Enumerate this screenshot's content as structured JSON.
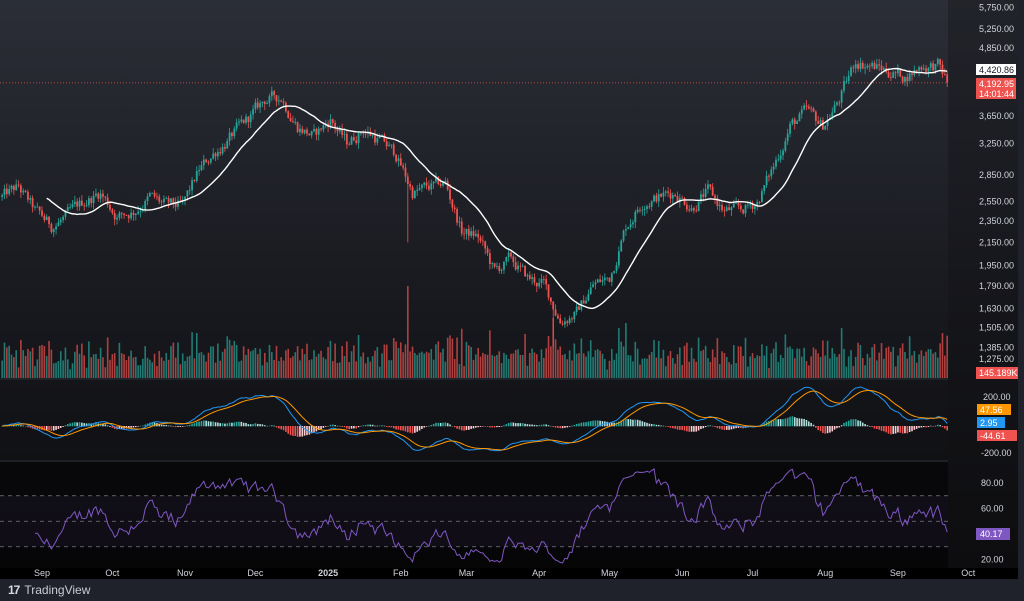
{
  "brand": {
    "name": "TradingView",
    "logo_icon": "tradingview-logo-icon"
  },
  "colors": {
    "up": "#26a69a",
    "down": "#ef5350",
    "ma": "#ffffff",
    "macd": "#2196f3",
    "signal": "#ff9800",
    "rsi": "#7e57c2"
  },
  "chart_data": [
    {
      "type": "candlestick",
      "scale": "log",
      "y_ticks": [
        "5,750.00",
        "5,250.00",
        "4,850.00",
        "3,650.00",
        "3,250.00",
        "2,850.00",
        "2,550.00",
        "2,350.00",
        "2,150.00",
        "1,950.00",
        "1,790.00",
        "1,630.00",
        "1,505.00",
        "1,385.00",
        "1,275.00"
      ],
      "y_tick_values": [
        5750,
        5250,
        4850,
        3650,
        3250,
        2850,
        2550,
        2350,
        2150,
        1950,
        1790,
        1630,
        1505,
        1385,
        1275
      ],
      "x_ticks": [
        "Sep",
        "Oct",
        "Nov",
        "Dec",
        "2025",
        "Feb",
        "Mar",
        "Apr",
        "May",
        "Jun",
        "Jul",
        "Aug",
        "Sep",
        "Oct"
      ],
      "x_tick_dates": [
        "2024-09-01",
        "2024-10-01",
        "2024-11-01",
        "2024-12-01",
        "2025-01-01",
        "2025-02-01",
        "2025-03-01",
        "2025-04-01",
        "2025-05-01",
        "2025-06-01",
        "2025-07-01",
        "2025-08-01",
        "2025-09-01",
        "2025-10-01"
      ],
      "approx_weekly_close": [
        [
          "2024-08-15",
          2600
        ],
        [
          "2024-08-22",
          2700
        ],
        [
          "2024-08-29",
          2450
        ],
        [
          "2024-09-05",
          2300
        ],
        [
          "2024-09-12",
          2400
        ],
        [
          "2024-09-19",
          2550
        ],
        [
          "2024-09-26",
          2650
        ],
        [
          "2024-10-03",
          2400
        ],
        [
          "2024-10-10",
          2450
        ],
        [
          "2024-10-17",
          2600
        ],
        [
          "2024-10-24",
          2500
        ],
        [
          "2024-10-31",
          2500
        ],
        [
          "2024-11-07",
          2900
        ],
        [
          "2024-11-14",
          3150
        ],
        [
          "2024-11-21",
          3350
        ],
        [
          "2024-11-28",
          3600
        ],
        [
          "2024-12-05",
          3900
        ],
        [
          "2024-12-12",
          3950
        ],
        [
          "2024-12-19",
          3500
        ],
        [
          "2024-12-26",
          3350
        ],
        [
          "2025-01-02",
          3600
        ],
        [
          "2025-01-09",
          3250
        ],
        [
          "2025-01-16",
          3450
        ],
        [
          "2025-01-23",
          3300
        ],
        [
          "2025-01-30",
          3100
        ],
        [
          "2025-02-06",
          2650
        ],
        [
          "2025-02-13",
          2700
        ],
        [
          "2025-02-20",
          2750
        ],
        [
          "2025-02-27",
          2250
        ],
        [
          "2025-03-06",
          2200
        ],
        [
          "2025-03-13",
          1900
        ],
        [
          "2025-03-20",
          2000
        ],
        [
          "2025-03-27",
          1850
        ],
        [
          "2025-04-03",
          1800
        ],
        [
          "2025-04-10",
          1550
        ],
        [
          "2025-04-17",
          1600
        ],
        [
          "2025-04-24",
          1800
        ],
        [
          "2025-05-01",
          1850
        ],
        [
          "2025-05-08",
          2300
        ],
        [
          "2025-05-15",
          2550
        ],
        [
          "2025-05-22",
          2600
        ],
        [
          "2025-05-29",
          2650
        ],
        [
          "2025-06-05",
          2500
        ],
        [
          "2025-06-12",
          2650
        ],
        [
          "2025-06-19",
          2450
        ],
        [
          "2025-06-26",
          2450
        ],
        [
          "2025-07-03",
          2550
        ],
        [
          "2025-07-10",
          2950
        ],
        [
          "2025-07-17",
          3500
        ],
        [
          "2025-07-24",
          3700
        ],
        [
          "2025-07-31",
          3500
        ],
        [
          "2025-08-07",
          3900
        ],
        [
          "2025-08-14",
          4600
        ],
        [
          "2025-08-21",
          4500
        ],
        [
          "2025-08-28",
          4400
        ],
        [
          "2025-09-04",
          4300
        ],
        [
          "2025-09-11",
          4500
        ],
        [
          "2025-09-18",
          4500
        ],
        [
          "2025-09-22",
          4192.95
        ]
      ],
      "overlay": "moving-average",
      "last_price": "4,192.95",
      "countdown": "14:01:44",
      "ma_value": "4,420.86",
      "volume_label": "145.189K"
    },
    {
      "type": "line",
      "indicator": "MACD",
      "y_ticks": [
        "200.00",
        "-200.00"
      ],
      "macd_value": "2.95",
      "signal_value": "47.56",
      "histogram_value": "-44.61"
    },
    {
      "type": "line",
      "indicator": "RSI",
      "y_ticks": [
        "80.00",
        "60.00",
        "20.00"
      ],
      "bands": [
        70,
        50,
        30
      ],
      "rsi_value": "40.17"
    }
  ]
}
